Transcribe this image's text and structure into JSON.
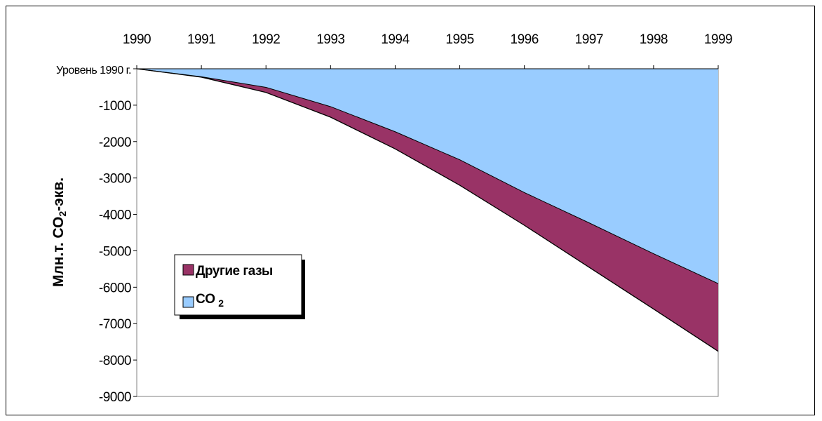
{
  "chart_data": {
    "type": "area",
    "x": [
      "1990",
      "1991",
      "1992",
      "1993",
      "1994",
      "1995",
      "1996",
      "1997",
      "1998",
      "1999"
    ],
    "series": [
      {
        "name": "CO 2",
        "values": [
          0,
          -220,
          -510,
          -1040,
          -1730,
          -2500,
          -3400,
          -4230,
          -5080,
          -5900
        ],
        "color": "#99ccff"
      },
      {
        "name": "Другие газы",
        "values": [
          0,
          -230,
          -650,
          -1330,
          -2200,
          -3200,
          -4300,
          -5450,
          -6600,
          -7760
        ],
        "color": "#993366"
      }
    ],
    "ylabel": "Млн.т. СО2-экв.",
    "ytick_labels": [
      "Уровень 1990 г.",
      "-1000",
      "-2000",
      "-3000",
      "-4000",
      "-5000",
      "-6000",
      "-7000",
      "-8000",
      "-9000"
    ],
    "yticks": [
      0,
      -1000,
      -2000,
      -3000,
      -4000,
      -5000,
      -6000,
      -7000,
      -8000,
      -9000
    ],
    "ylim": [
      -9000,
      0
    ],
    "xaxis_position": "top",
    "grid": false,
    "legend": {
      "position": "center-left",
      "entries": [
        "Другие газы",
        "CO 2"
      ]
    }
  }
}
